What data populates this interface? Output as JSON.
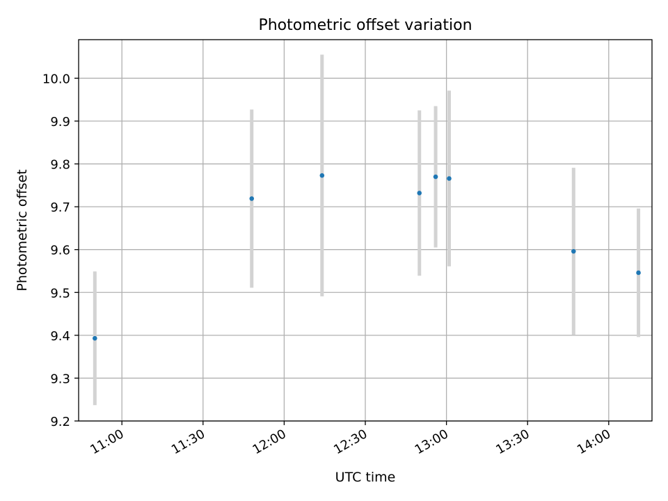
{
  "chart_data": {
    "type": "scatter",
    "title": "Photometric offset variation",
    "xlabel": "UTC time",
    "ylabel": "Photometric offset",
    "xlim": [
      "10:44",
      "14:16"
    ],
    "ylim": [
      9.2,
      10.09
    ],
    "grid": true,
    "x_ticks": [
      "11:00",
      "11:30",
      "12:00",
      "12:30",
      "13:00",
      "13:30",
      "14:00"
    ],
    "y_ticks": [
      "9.2",
      "9.3",
      "9.4",
      "9.5",
      "9.6",
      "9.7",
      "9.8",
      "9.9",
      "10.0"
    ],
    "series": [
      {
        "marker": "point",
        "error_bars": true,
        "points": [
          {
            "time": "10:50",
            "y": 9.393,
            "err": 0.156
          },
          {
            "time": "11:48",
            "y": 9.719,
            "err": 0.208
          },
          {
            "time": "12:14",
            "y": 9.773,
            "err": 0.282
          },
          {
            "time": "12:50",
            "y": 9.732,
            "err": 0.193
          },
          {
            "time": "12:56",
            "y": 9.77,
            "err": 0.165
          },
          {
            "time": "13:01",
            "y": 9.766,
            "err": 0.205
          },
          {
            "time": "13:47",
            "y": 9.596,
            "err": 0.195
          },
          {
            "time": "14:11",
            "y": 9.546,
            "err": 0.15
          }
        ]
      }
    ]
  },
  "colors": {
    "marker": "#1f77b4",
    "error_bar": "#d3d3d3",
    "grid": "#b0b0b0",
    "axes": "#000000"
  }
}
